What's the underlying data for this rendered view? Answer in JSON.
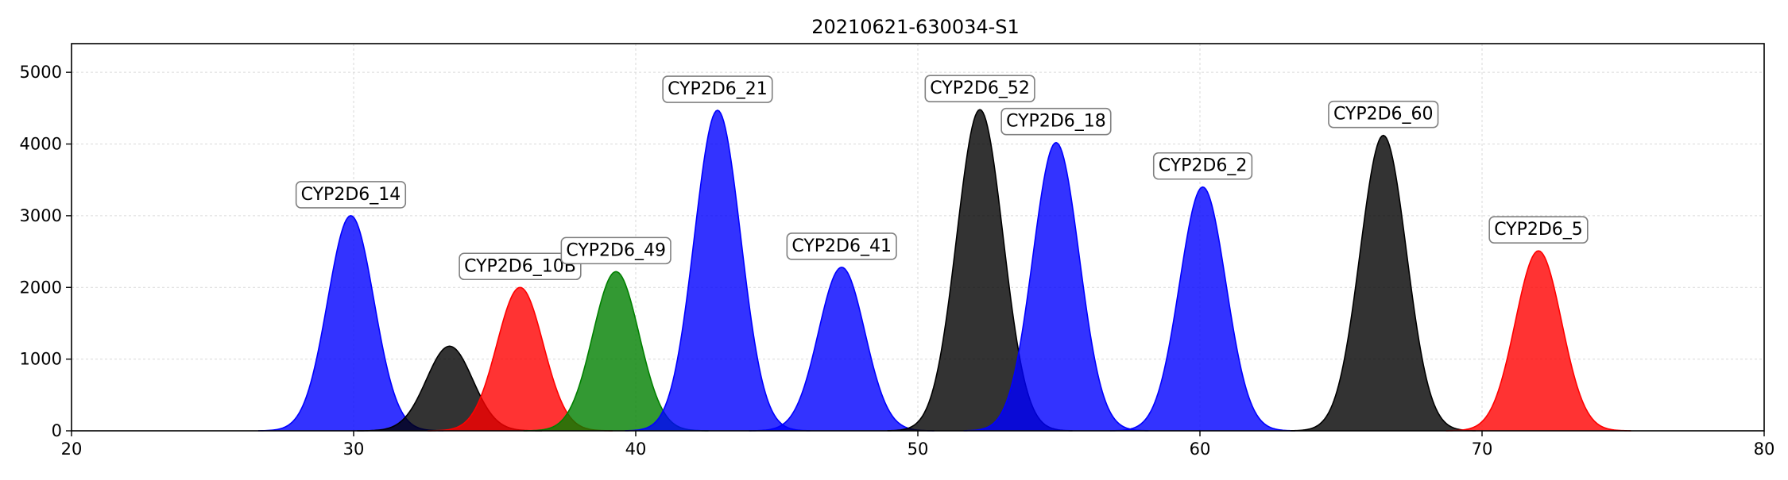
{
  "chart_data": {
    "type": "area",
    "title": "20210621-630034-S1",
    "xlabel": "",
    "ylabel": "",
    "xlim": [
      20,
      80
    ],
    "ylim": [
      0,
      5400
    ],
    "xticks": [
      20,
      30,
      40,
      50,
      60,
      70,
      80
    ],
    "yticks": [
      0,
      1000,
      2000,
      3000,
      4000,
      5000
    ],
    "grid": true,
    "colors": {
      "blue": "#0000ff",
      "black": "#000000",
      "red": "#ff0000",
      "green": "#008000"
    },
    "peaks": [
      {
        "label": "CYP2D6_14",
        "x": 29.9,
        "height": 3000,
        "color": "blue",
        "labeled": true
      },
      {
        "label": "",
        "x": 33.4,
        "height": 1180,
        "color": "black",
        "labeled": false
      },
      {
        "label": "CYP2D6_10B",
        "x": 35.9,
        "height": 2000,
        "color": "red",
        "labeled": true
      },
      {
        "label": "CYP2D6_49",
        "x": 39.3,
        "height": 2220,
        "color": "green",
        "labeled": true
      },
      {
        "label": "CYP2D6_21",
        "x": 42.9,
        "height": 4470,
        "color": "blue",
        "labeled": true
      },
      {
        "label": "CYP2D6_41",
        "x": 47.3,
        "height": 2280,
        "color": "blue",
        "labeled": true
      },
      {
        "label": "CYP2D6_52",
        "x": 52.2,
        "height": 4480,
        "color": "black",
        "labeled": true
      },
      {
        "label": "CYP2D6_18",
        "x": 54.9,
        "height": 4020,
        "color": "blue",
        "labeled": true
      },
      {
        "label": "CYP2D6_2",
        "x": 60.1,
        "height": 3400,
        "color": "blue",
        "labeled": true
      },
      {
        "label": "CYP2D6_60",
        "x": 66.5,
        "height": 4120,
        "color": "black",
        "labeled": true
      },
      {
        "label": "CYP2D6_5",
        "x": 72.0,
        "height": 2510,
        "color": "red",
        "labeled": true
      }
    ]
  }
}
